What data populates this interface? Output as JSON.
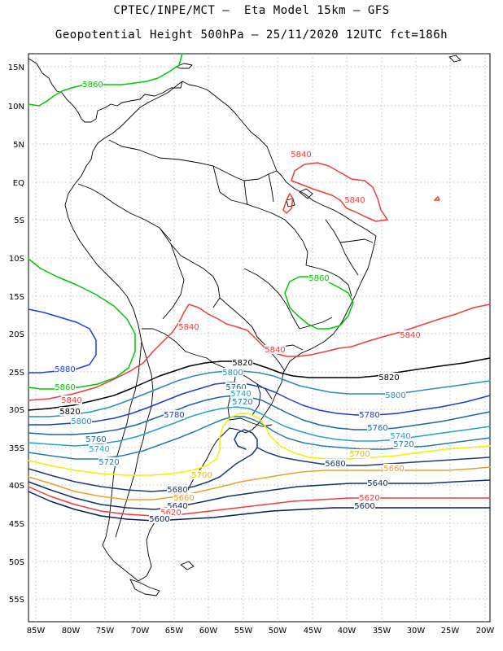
{
  "header": {
    "line1": "CPTEC/INPE/MCT –  Eta Model 15km – GFS",
    "line2": "Geopotential Height 500hPa – 25/11/2020 12UTC fct=186h"
  },
  "axes": {
    "lat_labels": [
      "15N",
      "10N",
      "5N",
      "EQ",
      "5S",
      "10S",
      "15S",
      "20S",
      "25S",
      "30S",
      "35S",
      "40S",
      "45S",
      "50S",
      "55S"
    ],
    "lon_labels": [
      "85W",
      "80W",
      "75W",
      "70W",
      "65W",
      "60W",
      "55W",
      "50W",
      "45W",
      "40W",
      "35W",
      "30W",
      "25W",
      "20W"
    ]
  },
  "contours": [
    {
      "value": "5880",
      "color": "#1a3cff"
    },
    {
      "value": "5860",
      "color": "#00c800"
    },
    {
      "value": "5840",
      "color": "#f03c3c"
    },
    {
      "value": "5820",
      "color": "#000000"
    },
    {
      "value": "5800",
      "color": "#2a8cbe"
    },
    {
      "value": "5780",
      "color": "#1e3cc8"
    },
    {
      "value": "5760",
      "color": "#1e64a0"
    },
    {
      "value": "5740",
      "color": "#28a0c8"
    },
    {
      "value": "5720",
      "color": "#2878b4"
    },
    {
      "value": "5700",
      "color": "#f0f000"
    },
    {
      "value": "5680",
      "color": "#1e3c78"
    },
    {
      "value": "5660",
      "color": "#e6a032"
    },
    {
      "value": "5640",
      "color": "#143264"
    },
    {
      "value": "5620",
      "color": "#f03c3c"
    },
    {
      "value": "5600",
      "color": "#0a1e50"
    }
  ],
  "contour_labels": [
    {
      "text": "5860",
      "color": "#00c800"
    },
    {
      "text": "5840",
      "color": "#f03c3c"
    },
    {
      "text": "5840",
      "color": "#f03c3c"
    },
    {
      "text": "5860",
      "color": "#00c800"
    },
    {
      "text": "5840",
      "color": "#f03c3c"
    },
    {
      "text": "5840",
      "color": "#f03c3c"
    },
    {
      "text": "5840",
      "color": "#f03c3c"
    },
    {
      "text": "5880",
      "color": "#1a3cff"
    },
    {
      "text": "5860",
      "color": "#00c800"
    },
    {
      "text": "5840",
      "color": "#f03c3c"
    },
    {
      "text": "5820",
      "color": "#000000"
    },
    {
      "text": "5820",
      "color": "#000000"
    },
    {
      "text": "5820",
      "color": "#000000"
    },
    {
      "text": "5800",
      "color": "#2a8cbe"
    },
    {
      "text": "5800",
      "color": "#2a8cbe"
    },
    {
      "text": "5800",
      "color": "#2a8cbe"
    },
    {
      "text": "5780",
      "color": "#1e3cc8"
    },
    {
      "text": "5780",
      "color": "#1e3cc8"
    },
    {
      "text": "5760",
      "color": "#1e64a0"
    },
    {
      "text": "5760",
      "color": "#1e64a0"
    },
    {
      "text": "5760",
      "color": "#1e64a0"
    },
    {
      "text": "5740",
      "color": "#28a0c8"
    },
    {
      "text": "5740",
      "color": "#28a0c8"
    },
    {
      "text": "5740",
      "color": "#28a0c8"
    },
    {
      "text": "5720",
      "color": "#2878b4"
    },
    {
      "text": "5720",
      "color": "#2878b4"
    },
    {
      "text": "5720",
      "color": "#2878b4"
    },
    {
      "text": "5700",
      "color": "#d4c800"
    },
    {
      "text": "5700",
      "color": "#d4c800"
    },
    {
      "text": "5680",
      "color": "#1e3c78"
    },
    {
      "text": "5680",
      "color": "#1e3c78"
    },
    {
      "text": "5660",
      "color": "#e6a032"
    },
    {
      "text": "5660",
      "color": "#e6a032"
    },
    {
      "text": "5640",
      "color": "#143264"
    },
    {
      "text": "5640",
      "color": "#143264"
    },
    {
      "text": "5620",
      "color": "#f03c3c"
    },
    {
      "text": "5620",
      "color": "#f03c3c"
    },
    {
      "text": "5600",
      "color": "#0a1e50"
    },
    {
      "text": "5600",
      "color": "#0a1e50"
    }
  ]
}
